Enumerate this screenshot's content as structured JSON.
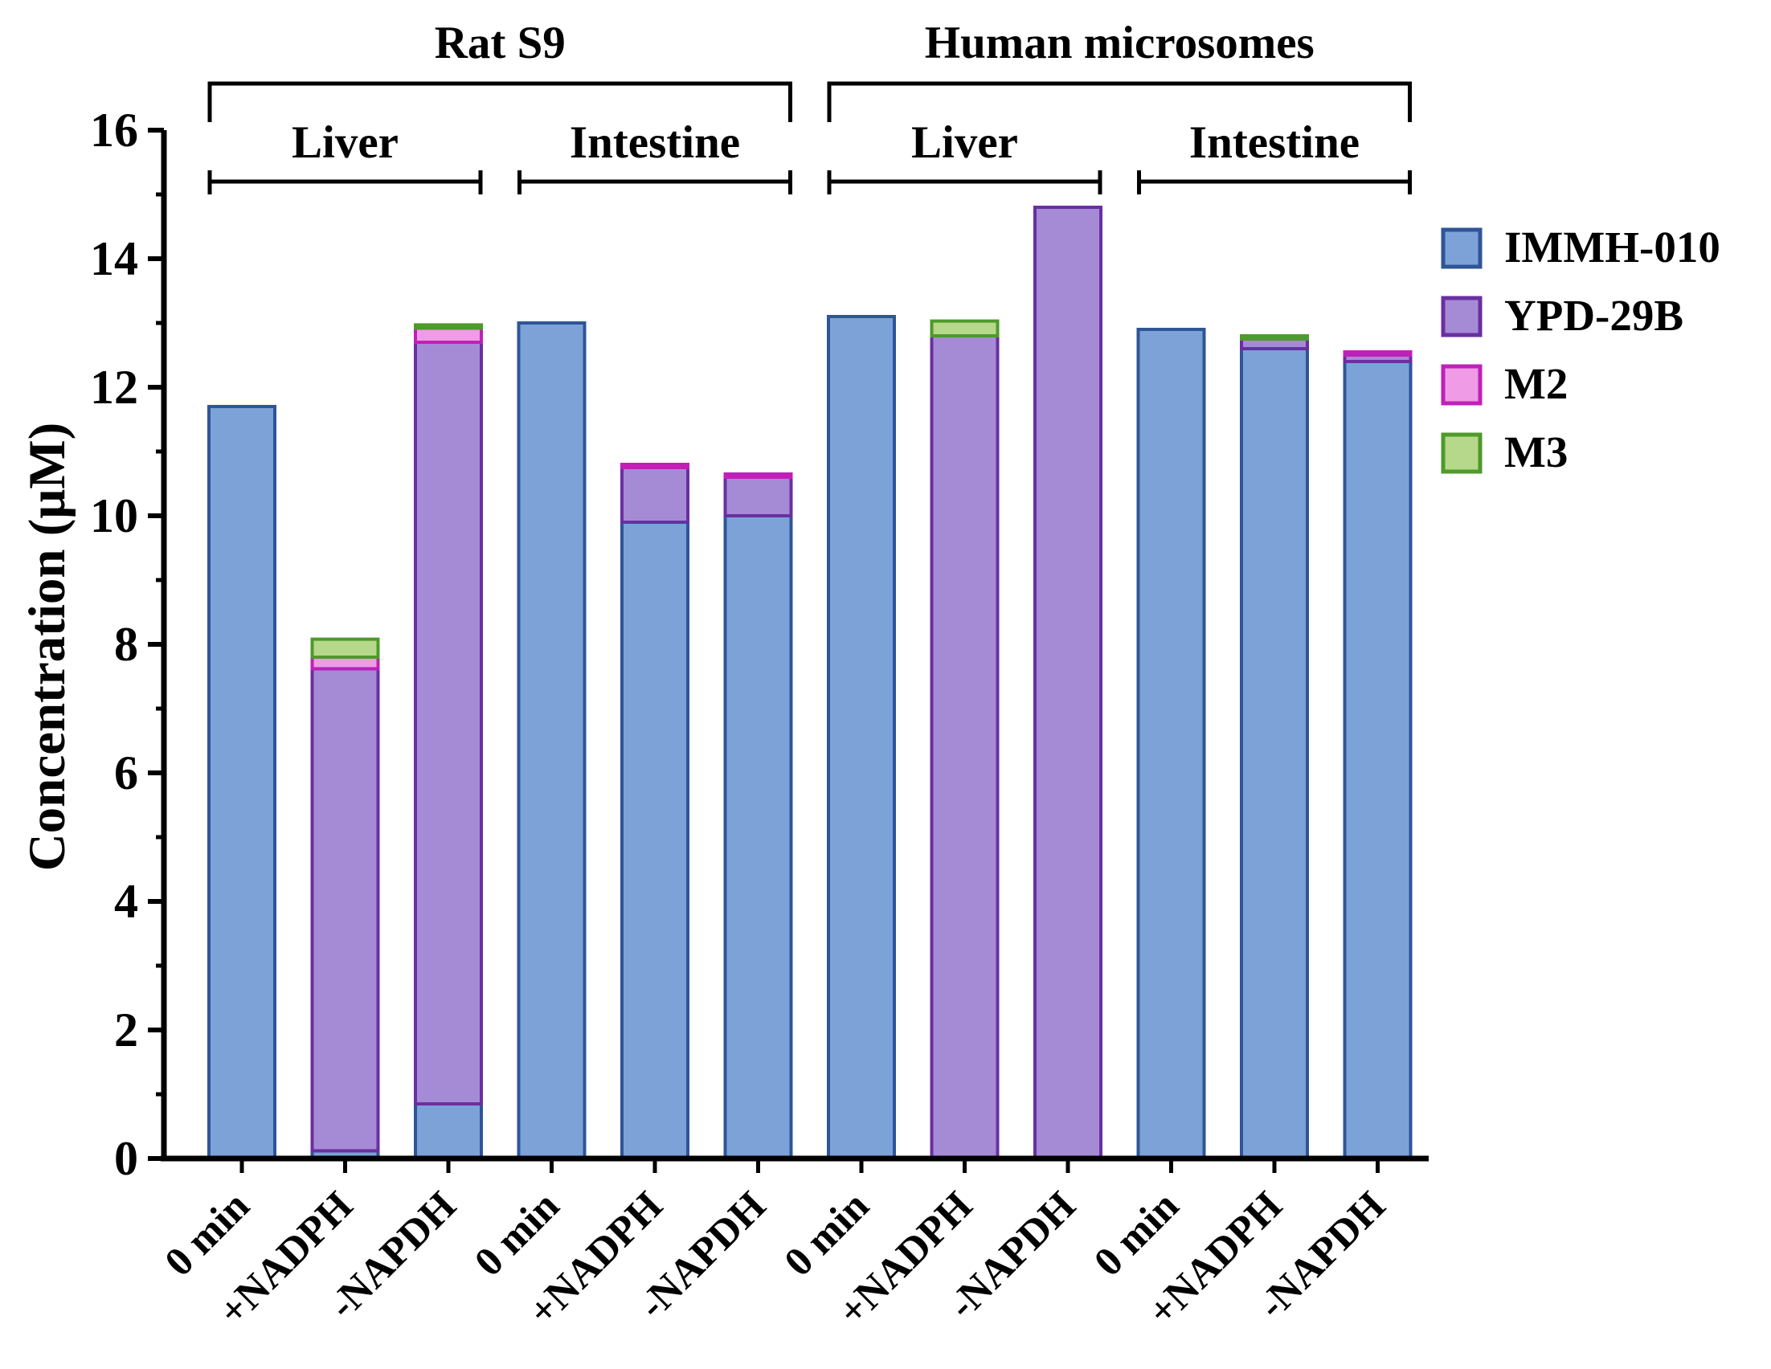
{
  "chart_data": {
    "type": "bar",
    "stacked": true,
    "ylabel": "Concentration (μM)",
    "xlabel": "",
    "ylim": [
      0,
      16
    ],
    "yticks": [
      0,
      2,
      4,
      6,
      8,
      10,
      12,
      14,
      16
    ],
    "categories": [
      "0 min",
      "+NADPH",
      "-NAPDH",
      "0 min",
      "+NADPH",
      "-NAPDH",
      "0 min",
      "+NADPH",
      "-NAPDH",
      "0 min",
      "+NADPH",
      "-NAPDH"
    ],
    "series": [
      {
        "name": "IMMH-010",
        "color": "#7da2d8",
        "edge": "#2f5597",
        "values": [
          11.7,
          0.12,
          0.85,
          13.0,
          9.9,
          10.0,
          13.1,
          0.0,
          0.0,
          12.9,
          12.6,
          12.4
        ]
      },
      {
        "name": "YPD-29B",
        "color": "#a58bd6",
        "edge": "#6a2fa0",
        "values": [
          0.0,
          7.5,
          11.85,
          0.0,
          0.85,
          0.6,
          0.0,
          12.8,
          14.8,
          0.0,
          0.15,
          0.1
        ]
      },
      {
        "name": "M2",
        "color": "#f09be6",
        "edge": "#c020b8",
        "values": [
          0.0,
          0.18,
          0.22,
          0.0,
          0.05,
          0.05,
          0.0,
          0.0,
          0.0,
          0.0,
          0.0,
          0.05
        ]
      },
      {
        "name": "M3",
        "color": "#b6d88a",
        "edge": "#4e9a2a",
        "values": [
          0.0,
          0.28,
          0.05,
          0.0,
          0.0,
          0.0,
          0.0,
          0.23,
          0.0,
          0.0,
          0.05,
          0.0
        ]
      }
    ],
    "groups": [
      {
        "label": "Rat S9",
        "subgroups": [
          {
            "label": "Liver",
            "categories": [
              0,
              1,
              2
            ]
          },
          {
            "label": "Intestine",
            "categories": [
              3,
              4,
              5
            ]
          }
        ]
      },
      {
        "label": "Human microsomes",
        "subgroups": [
          {
            "label": "Liver",
            "categories": [
              6,
              7,
              8
            ]
          },
          {
            "label": "Intestine",
            "categories": [
              9,
              10,
              11
            ]
          }
        ]
      }
    ],
    "legend": {
      "position": "right"
    },
    "grid": false
  }
}
